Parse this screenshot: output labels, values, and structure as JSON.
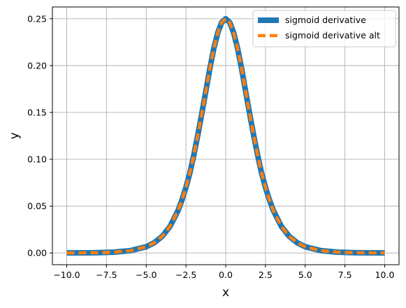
{
  "chart_data": {
    "type": "line",
    "xlabel": "x",
    "ylabel": "y",
    "xlim": [
      -10.9,
      10.9
    ],
    "ylim": [
      -0.0125,
      0.2625
    ],
    "xticks": [
      -10,
      -7.5,
      -5,
      -2.5,
      0,
      2.5,
      5,
      7.5,
      10
    ],
    "xtick_labels": [
      "−10.0",
      "−7.5",
      "−5.0",
      "−2.5",
      "0.0",
      "2.5",
      "5.0",
      "7.5",
      "10.0"
    ],
    "yticks": [
      0,
      0.05,
      0.1,
      0.15,
      0.2,
      0.25
    ],
    "ytick_labels": [
      "0.00",
      "0.05",
      "0.10",
      "0.15",
      "0.20",
      "0.25"
    ],
    "grid": true,
    "legend_position": "top-right",
    "x": [
      -10,
      -9,
      -8,
      -7,
      -6,
      -5,
      -4.5,
      -4,
      -3.5,
      -3,
      -2.75,
      -2.5,
      -2.25,
      -2,
      -1.75,
      -1.5,
      -1.25,
      -1,
      -0.75,
      -0.5,
      -0.25,
      0,
      0.25,
      0.5,
      0.75,
      1,
      1.25,
      1.5,
      1.75,
      2,
      2.25,
      2.5,
      2.75,
      3,
      3.5,
      4,
      4.5,
      5,
      6,
      7,
      8,
      9,
      10
    ],
    "series": [
      {
        "name": "sigmoid derivative",
        "color": "#1f77b4",
        "style": "solid",
        "values": [
          4.54e-05,
          0.0001234,
          0.0003353,
          0.0009102,
          0.0024665,
          0.0066481,
          0.0108782,
          0.0176627,
          0.0283533,
          0.0451767,
          0.0565899,
          0.0701037,
          0.0856419,
          0.1049936,
          0.1262603,
          0.1491465,
          0.1726549,
          0.1966119,
          0.218057,
          0.2350037,
          0.246134,
          0.25,
          0.246134,
          0.2350037,
          0.218057,
          0.1966119,
          0.1726549,
          0.1491465,
          0.1262603,
          0.1049936,
          0.0856419,
          0.0701037,
          0.0565899,
          0.0451767,
          0.0283533,
          0.0176627,
          0.0108782,
          0.0066481,
          0.0024665,
          0.0009102,
          0.0003353,
          0.0001234,
          4.54e-05
        ]
      },
      {
        "name": "sigmoid derivative alt",
        "color": "#ff7f0e",
        "style": "dashed",
        "values": [
          4.54e-05,
          0.0001234,
          0.0003353,
          0.0009102,
          0.0024665,
          0.0066481,
          0.0108782,
          0.0176627,
          0.0283533,
          0.0451767,
          0.0565899,
          0.0701037,
          0.0856419,
          0.1049936,
          0.1262603,
          0.1491465,
          0.1726549,
          0.1966119,
          0.218057,
          0.2350037,
          0.246134,
          0.25,
          0.246134,
          0.2350037,
          0.218057,
          0.1966119,
          0.1726549,
          0.1491465,
          0.1262603,
          0.1049936,
          0.0856419,
          0.0701037,
          0.0565899,
          0.0451767,
          0.0283533,
          0.0176627,
          0.0108782,
          0.0066481,
          0.0024665,
          0.0009102,
          0.0003353,
          0.0001234,
          4.54e-05
        ]
      }
    ]
  }
}
